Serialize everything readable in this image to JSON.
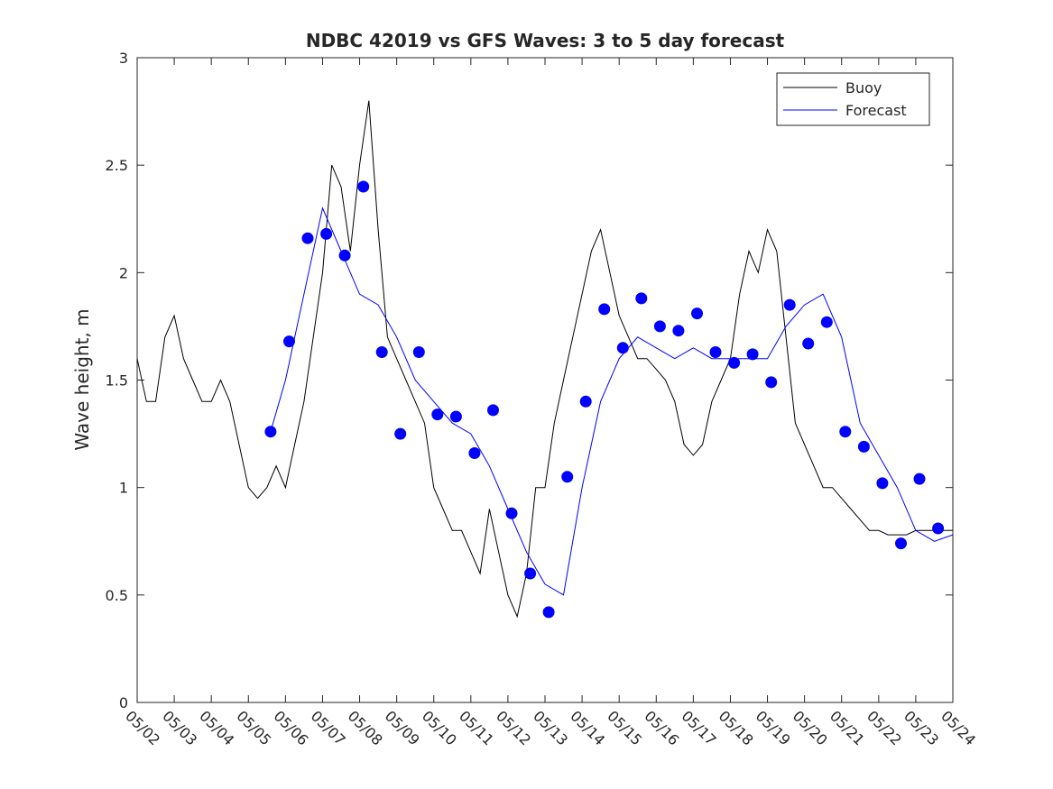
{
  "chart_data": {
    "type": "line",
    "title": "NDBC 42019 vs GFS Waves: 3 to 5 day forecast",
    "xlabel": "",
    "ylabel": "Wave height, m",
    "ylim": [
      0,
      3
    ],
    "yticks": [
      0,
      0.5,
      1,
      1.5,
      2,
      2.5,
      3
    ],
    "xlim_days": [
      0,
      22
    ],
    "xticks": [
      "05/02",
      "05/03",
      "05/04",
      "05/05",
      "05/06",
      "05/07",
      "05/08",
      "05/09",
      "05/10",
      "05/11",
      "05/12",
      "05/13",
      "05/14",
      "05/15",
      "05/16",
      "05/17",
      "05/18",
      "05/19",
      "05/20",
      "05/21",
      "05/22",
      "05/23",
      "05/24"
    ],
    "grid": false,
    "legend": {
      "position": "top-right",
      "entries": [
        {
          "name": "Buoy",
          "color": "#000000"
        },
        {
          "name": "Forecast",
          "color": "#0000ff"
        }
      ]
    },
    "series": [
      {
        "name": "Buoy",
        "color": "#000000",
        "x": [
          0,
          0.25,
          0.5,
          0.75,
          1,
          1.25,
          1.5,
          1.75,
          2,
          2.25,
          2.5,
          2.75,
          3,
          3.25,
          3.5,
          3.75,
          4,
          4.25,
          4.5,
          4.75,
          5,
          5.25,
          5.5,
          5.75,
          6,
          6.25,
          6.5,
          6.75,
          7,
          7.25,
          7.5,
          7.75,
          8,
          8.25,
          8.5,
          8.75,
          9,
          9.25,
          9.5,
          9.75,
          10,
          10.25,
          10.5,
          10.75,
          11,
          11.25,
          11.5,
          11.75,
          12,
          12.25,
          12.5,
          12.75,
          13,
          13.25,
          13.5,
          13.75,
          14,
          14.25,
          14.5,
          14.75,
          15,
          15.25,
          15.5,
          15.75,
          16,
          16.25,
          16.5,
          16.75,
          17,
          17.25,
          17.5,
          17.75,
          18,
          18.25,
          18.5,
          18.75,
          19,
          19.25,
          19.5,
          19.75,
          20,
          20.25,
          20.5,
          20.75,
          21,
          21.25,
          21.5,
          21.75,
          22
        ],
        "values": [
          1.6,
          1.4,
          1.4,
          1.7,
          1.8,
          1.6,
          1.5,
          1.4,
          1.4,
          1.5,
          1.4,
          1.2,
          1.0,
          0.95,
          1.0,
          1.1,
          1.0,
          1.2,
          1.4,
          1.7,
          2.0,
          2.5,
          2.4,
          2.1,
          2.5,
          2.8,
          2.2,
          1.7,
          1.6,
          1.5,
          1.4,
          1.3,
          1.0,
          0.9,
          0.8,
          0.8,
          0.7,
          0.6,
          0.9,
          0.7,
          0.5,
          0.4,
          0.6,
          1.0,
          1.0,
          1.3,
          1.5,
          1.7,
          1.9,
          2.1,
          2.2,
          2.0,
          1.8,
          1.7,
          1.6,
          1.6,
          1.55,
          1.5,
          1.4,
          1.2,
          1.15,
          1.2,
          1.4,
          1.5,
          1.6,
          1.9,
          2.1,
          2.0,
          2.2,
          2.1,
          1.7,
          1.3,
          1.2,
          1.1,
          1.0,
          1.0,
          0.95,
          0.9,
          0.85,
          0.8,
          0.8,
          0.78,
          0.78,
          0.78,
          0.8,
          0.8,
          0.8,
          0.8,
          0.8
        ]
      },
      {
        "name": "Forecast",
        "color": "#0000ff",
        "x": [
          3.6,
          4.0,
          4.5,
          5.0,
          5.5,
          6.0,
          6.5,
          7.0,
          7.5,
          8.0,
          8.5,
          9.0,
          9.5,
          10.0,
          10.5,
          11.0,
          11.5,
          12.0,
          12.5,
          13.0,
          13.5,
          14.0,
          14.5,
          15.0,
          15.5,
          16.0,
          16.5,
          17.0,
          17.5,
          18.0,
          18.5,
          19.0,
          19.5,
          20.0,
          20.5,
          21.0,
          21.5,
          22.0
        ],
        "values": [
          1.26,
          1.5,
          1.9,
          2.3,
          2.1,
          1.9,
          1.85,
          1.7,
          1.5,
          1.4,
          1.3,
          1.25,
          1.1,
          0.9,
          0.7,
          0.55,
          0.5,
          1.0,
          1.4,
          1.6,
          1.7,
          1.65,
          1.6,
          1.65,
          1.6,
          1.6,
          1.6,
          1.6,
          1.75,
          1.85,
          1.9,
          1.7,
          1.3,
          1.15,
          1.0,
          0.8,
          0.75,
          0.78
        ]
      }
    ],
    "forecast_points": {
      "name": "Forecast",
      "x": [
        3.6,
        4.1,
        4.6,
        5.1,
        5.6,
        6.1,
        6.6,
        7.1,
        7.6,
        8.1,
        8.6,
        9.1,
        9.6,
        10.1,
        10.6,
        11.1,
        11.6,
        12.1,
        12.6,
        13.1,
        13.6,
        14.1,
        14.6,
        15.1,
        15.6,
        16.1,
        16.6,
        17.1,
        17.6,
        18.1,
        18.6,
        19.1,
        19.6,
        20.1,
        20.6,
        21.1,
        21.6,
        22.1
      ],
      "values": [
        1.26,
        1.68,
        2.16,
        2.18,
        2.08,
        2.4,
        1.63,
        1.25,
        1.63,
        1.34,
        1.33,
        1.16,
        1.36,
        0.88,
        0.6,
        0.42,
        1.05,
        1.4,
        1.83,
        1.65,
        1.88,
        1.75,
        1.73,
        1.81,
        1.63,
        1.58,
        1.62,
        1.49,
        1.85,
        1.67,
        1.77,
        1.26,
        1.19,
        1.02,
        0.74,
        1.04,
        0.81,
        0.81
      ]
    }
  }
}
